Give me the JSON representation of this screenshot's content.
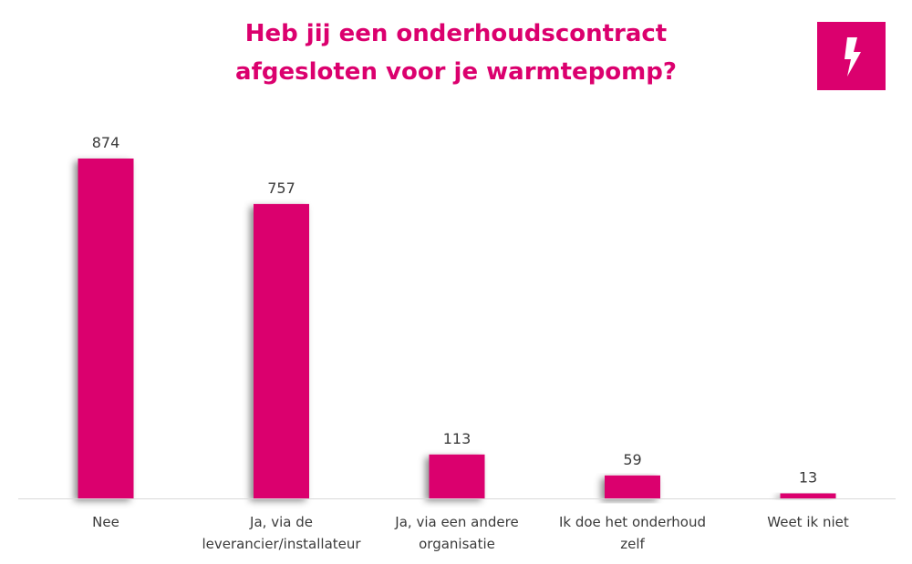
{
  "colors": {
    "accent": "#DB006E",
    "text": "#3a3a3a",
    "axis": "#d9d9d9"
  },
  "logo": {
    "icon": "lightning-bolt-icon"
  },
  "chart_data": {
    "type": "bar",
    "title_lines": [
      "Heb jij een onderhoudscontract",
      "afgesloten voor je warmtepomp?"
    ],
    "categories": [
      [
        "Nee"
      ],
      [
        "Ja, via de",
        "leverancier/installateur"
      ],
      [
        "Ja, via een andere",
        "organisatie"
      ],
      [
        "Ik doe het onderhoud",
        "zelf"
      ],
      [
        "Weet ik niet"
      ]
    ],
    "values": [
      874,
      757,
      113,
      59,
      13
    ],
    "data_labels": [
      "874",
      "757",
      "113",
      "59",
      "13"
    ],
    "ylim": [
      0,
      874
    ],
    "grid": false,
    "legend": "none"
  }
}
